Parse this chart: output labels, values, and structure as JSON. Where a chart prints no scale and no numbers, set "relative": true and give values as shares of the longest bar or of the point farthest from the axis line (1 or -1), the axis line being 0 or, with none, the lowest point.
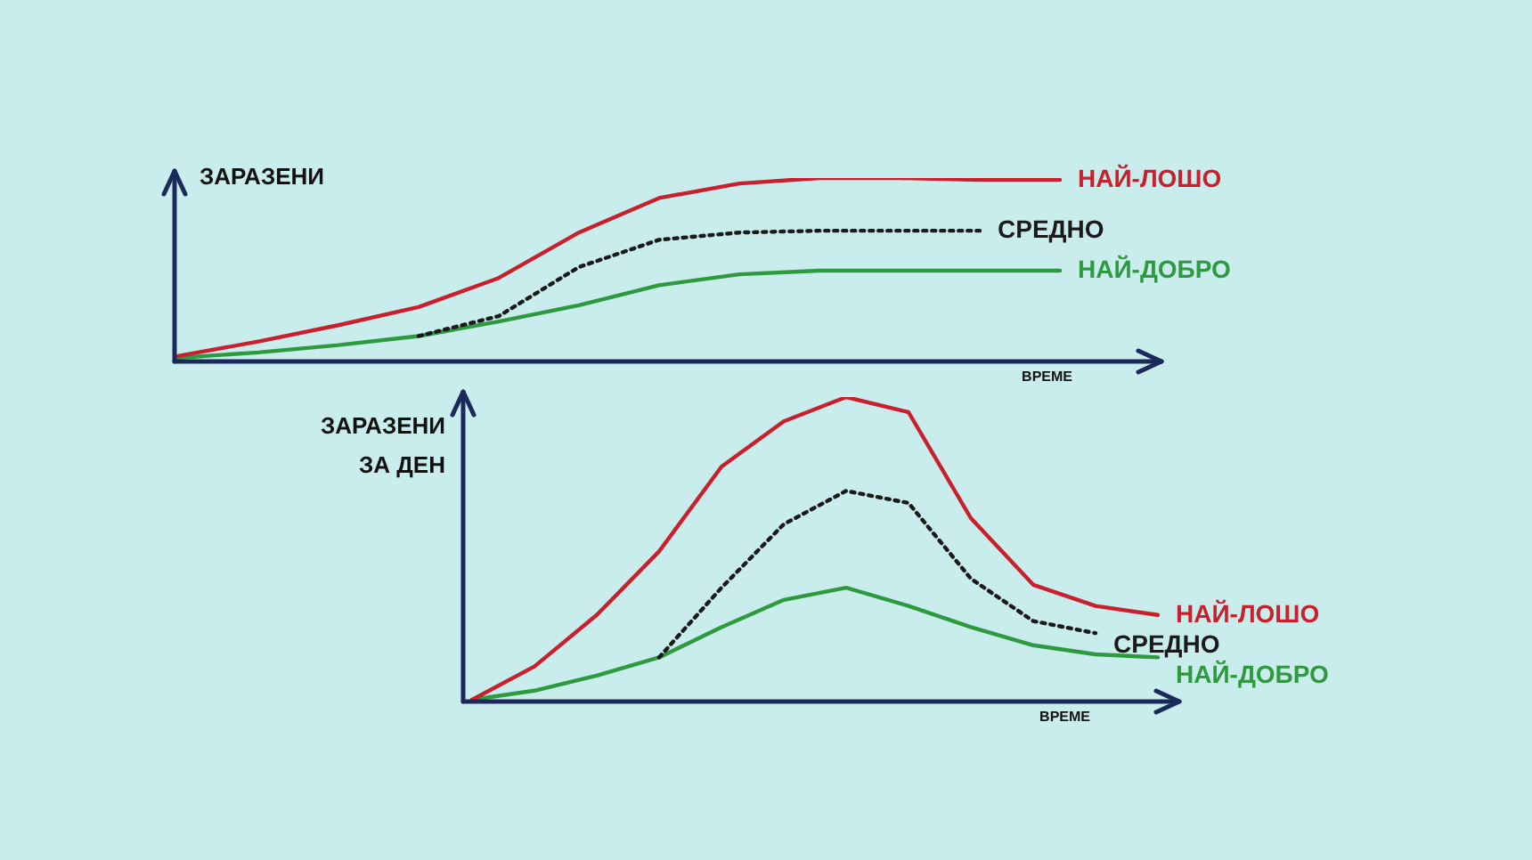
{
  "chart_data": [
    {
      "type": "line",
      "relative": true,
      "ylabel": "ЗАРАЗЕНИ",
      "xlabel": "ВРЕМЕ",
      "marker": "none",
      "categories": [
        null,
        null,
        null,
        null,
        null,
        null,
        null,
        null,
        null,
        null,
        null,
        null
      ],
      "series": [
        {
          "name": "НАЙ-ЛОШО",
          "color": "#c8202c",
          "line_style": "solid",
          "values": [
            0.02,
            0.1,
            0.19,
            0.29,
            0.45,
            0.7,
            0.89,
            0.97,
            1.0,
            1.0,
            0.99,
            0.99
          ]
        },
        {
          "name": "СРЕДНО",
          "color": "#1a1a1a",
          "line_style": "dotted",
          "values": [
            null,
            null,
            null,
            0.13,
            0.24,
            0.51,
            0.66,
            0.7,
            0.71,
            0.71,
            0.71,
            null
          ]
        },
        {
          "name": "НАЙ-ДОБРО",
          "color": "#2e9a3e",
          "line_style": "solid",
          "values": [
            0.01,
            0.04,
            0.08,
            0.13,
            0.21,
            0.3,
            0.41,
            0.47,
            0.49,
            0.49,
            0.49,
            0.49
          ]
        }
      ]
    },
    {
      "type": "line",
      "relative": true,
      "ylabel": "ЗАРАЗЕНИ ЗА ДЕН",
      "xlabel": "ВРЕМЕ",
      "marker": "none",
      "categories": [
        null,
        null,
        null,
        null,
        null,
        null,
        null,
        null,
        null,
        null,
        null,
        null
      ],
      "series": [
        {
          "name": "НАЙ-ЛОШО",
          "color": "#c8202c",
          "line_style": "solid",
          "values": [
            0,
            0.11,
            0.28,
            0.49,
            0.77,
            0.92,
            1.0,
            0.95,
            0.6,
            0.38,
            0.31,
            0.28
          ]
        },
        {
          "name": "СРЕДНО",
          "color": "#1a1a1a",
          "line_style": "dotted",
          "values": [
            null,
            null,
            null,
            0.14,
            0.37,
            0.58,
            0.69,
            0.65,
            0.4,
            0.26,
            0.22,
            null
          ]
        },
        {
          "name": "НАЙ-ДОБРО",
          "color": "#2e9a3e",
          "line_style": "solid",
          "values": [
            0,
            0.03,
            0.08,
            0.14,
            0.24,
            0.33,
            0.37,
            0.31,
            0.24,
            0.18,
            0.15,
            0.14
          ]
        }
      ]
    }
  ]
}
